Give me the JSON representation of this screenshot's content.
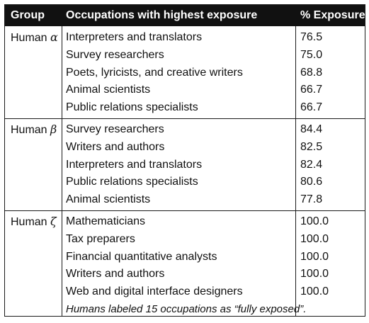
{
  "table": {
    "headers": {
      "group": "Group",
      "occupations": "Occupations with highest exposure",
      "percent": "% Exposure"
    },
    "groups": [
      {
        "label_prefix": "Human ",
        "label_symbol": "α",
        "rows": [
          {
            "occupation": "Interpreters and translators",
            "value": "76.5"
          },
          {
            "occupation": "Survey researchers",
            "value": "75.0"
          },
          {
            "occupation": "Poets, lyricists, and creative writers",
            "value": "68.8"
          },
          {
            "occupation": "Animal scientists",
            "value": "66.7"
          },
          {
            "occupation": "Public relations specialists",
            "value": "66.7"
          }
        ]
      },
      {
        "label_prefix": "Human ",
        "label_symbol": "β",
        "rows": [
          {
            "occupation": "Survey researchers",
            "value": "84.4"
          },
          {
            "occupation": "Writers and authors",
            "value": "82.5"
          },
          {
            "occupation": "Interpreters and translators",
            "value": "82.4"
          },
          {
            "occupation": "Public relations specialists",
            "value": "80.6"
          },
          {
            "occupation": "Animal scientists",
            "value": "77.8"
          }
        ]
      },
      {
        "label_prefix": "Human ",
        "label_symbol": "ζ",
        "rows": [
          {
            "occupation": "Mathematicians",
            "value": "100.0"
          },
          {
            "occupation": "Tax preparers",
            "value": "100.0"
          },
          {
            "occupation": "Financial quantitative analysts",
            "value": "100.0"
          },
          {
            "occupation": "Writers and authors",
            "value": "100.0"
          },
          {
            "occupation": "Web and digital interface designers",
            "value": "100.0"
          }
        ],
        "note": "Humans labeled 15 occupations as “fully exposed”."
      }
    ]
  }
}
